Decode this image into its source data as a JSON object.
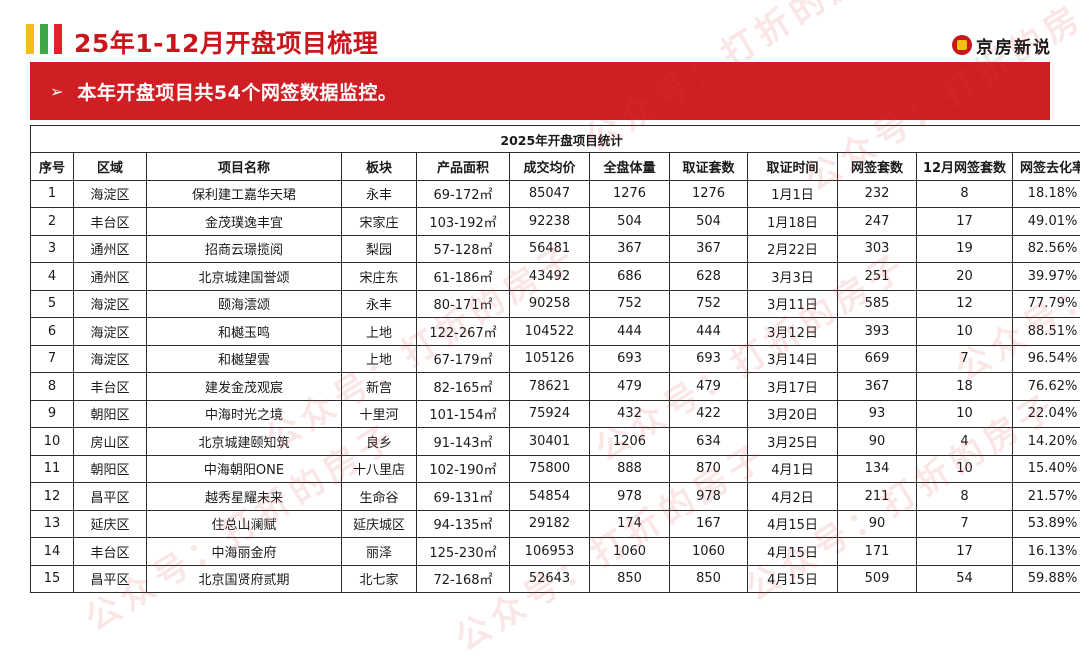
{
  "title": "25年1-12月开盘项目梳理",
  "logo": {
    "text": "京房新说"
  },
  "banner": {
    "arrow": "➢",
    "text": "本年开盘项目共54个网签数据监控。"
  },
  "table": {
    "caption": "2025年开盘项目统计",
    "headers": [
      "序号",
      "区域",
      "项目名称",
      "板块",
      "产品面积",
      "成交均价",
      "全盘体量",
      "取证套数",
      "取证时间",
      "网签套数",
      "12月网签套数",
      "网签去化率"
    ],
    "rows": [
      [
        "1",
        "海淀区",
        "保利建工嘉华天珺",
        "永丰",
        "69-172㎡",
        "85047",
        "1276",
        "1276",
        "1月1日",
        "232",
        "8",
        "18.18%"
      ],
      [
        "2",
        "丰台区",
        "金茂璞逸丰宜",
        "宋家庄",
        "103-192㎡",
        "92238",
        "504",
        "504",
        "1月18日",
        "247",
        "17",
        "49.01%"
      ],
      [
        "3",
        "通州区",
        "招商云璟揽阅",
        "梨园",
        "57-128㎡",
        "56481",
        "367",
        "367",
        "2月22日",
        "303",
        "19",
        "82.56%"
      ],
      [
        "4",
        "通州区",
        "北京城建国誉颂",
        "宋庄东",
        "61-186㎡",
        "43492",
        "686",
        "628",
        "3月3日",
        "251",
        "20",
        "39.97%"
      ],
      [
        "5",
        "海淀区",
        "颐海澐颂",
        "永丰",
        "80-171㎡",
        "90258",
        "752",
        "752",
        "3月11日",
        "585",
        "12",
        "77.79%"
      ],
      [
        "6",
        "海淀区",
        "和樾玉鸣",
        "上地",
        "122-267㎡",
        "104522",
        "444",
        "444",
        "3月12日",
        "393",
        "10",
        "88.51%"
      ],
      [
        "7",
        "海淀区",
        "和樾望雲",
        "上地",
        "67-179㎡",
        "105126",
        "693",
        "693",
        "3月14日",
        "669",
        "7",
        "96.54%"
      ],
      [
        "8",
        "丰台区",
        "建发金茂观宸",
        "新宫",
        "82-165㎡",
        "78621",
        "479",
        "479",
        "3月17日",
        "367",
        "18",
        "76.62%"
      ],
      [
        "9",
        "朝阳区",
        "中海时光之境",
        "十里河",
        "101-154㎡",
        "75924",
        "432",
        "422",
        "3月20日",
        "93",
        "10",
        "22.04%"
      ],
      [
        "10",
        "房山区",
        "北京城建颐知筑",
        "良乡",
        "91-143㎡",
        "30401",
        "1206",
        "634",
        "3月25日",
        "90",
        "4",
        "14.20%"
      ],
      [
        "11",
        "朝阳区",
        "中海朝阳ONE",
        "十八里店",
        "102-190㎡",
        "75800",
        "888",
        "870",
        "4月1日",
        "134",
        "10",
        "15.40%"
      ],
      [
        "12",
        "昌平区",
        "越秀星耀未来",
        "生命谷",
        "69-131㎡",
        "54854",
        "978",
        "978",
        "4月2日",
        "211",
        "8",
        "21.57%"
      ],
      [
        "13",
        "延庆区",
        "住总山澜赋",
        "延庆城区",
        "94-135㎡",
        "29182",
        "174",
        "167",
        "4月15日",
        "90",
        "7",
        "53.89%"
      ],
      [
        "14",
        "丰台区",
        "中海丽金府",
        "丽泽",
        "125-230㎡",
        "106953",
        "1060",
        "1060",
        "4月15日",
        "171",
        "17",
        "16.13%"
      ],
      [
        "15",
        "昌平区",
        "北京国贤府贰期",
        "北七家",
        "72-168㎡",
        "52643",
        "850",
        "850",
        "4月15日",
        "509",
        "54",
        "59.88%"
      ]
    ]
  },
  "watermark": {
    "text": "公众号：打折的房子"
  },
  "colors": {
    "brand_red": "#cf1f24",
    "title_red": "#c8161d",
    "accent_yellow": "#f2c012",
    "accent_green": "#3fa64a"
  }
}
